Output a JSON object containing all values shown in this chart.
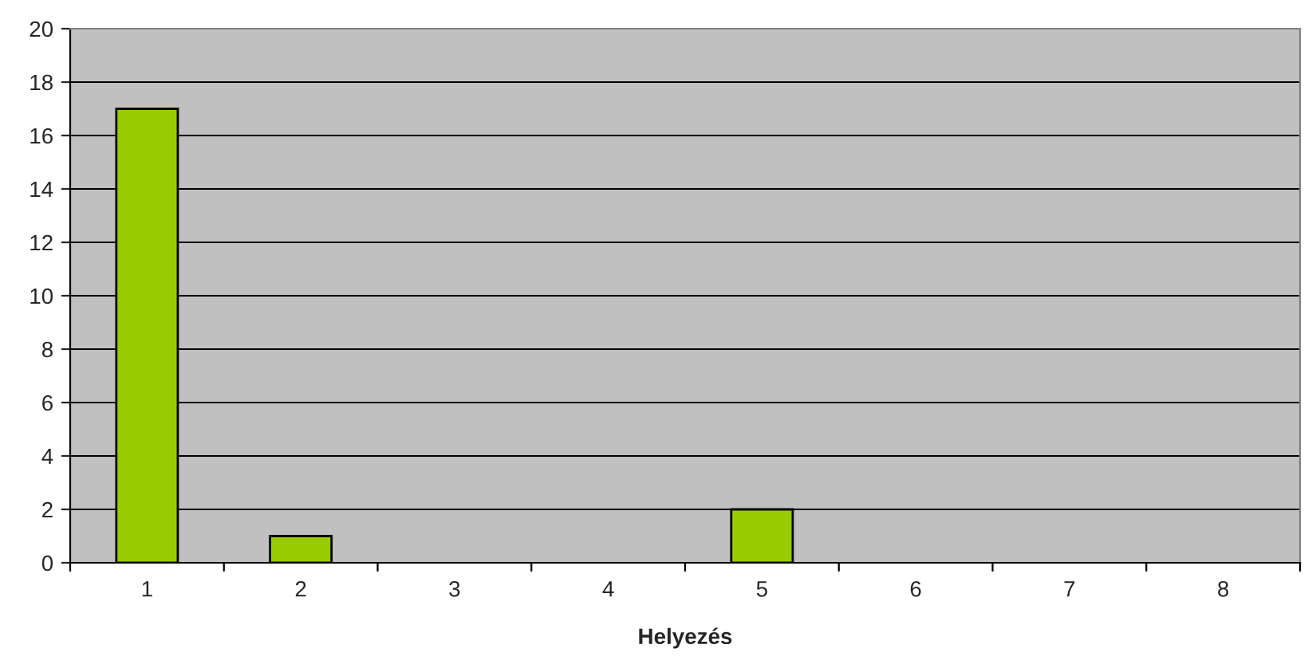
{
  "chart_data": {
    "type": "bar",
    "xlabel": "Helyezés",
    "categories": [
      "1",
      "2",
      "3",
      "4",
      "5",
      "6",
      "7",
      "8"
    ],
    "values": [
      17,
      1,
      0,
      0,
      2,
      0,
      0,
      0
    ],
    "color": "#99cc00",
    "ylim": [
      0,
      20
    ],
    "yticks": [
      0,
      2,
      4,
      6,
      8,
      10,
      12,
      14,
      16,
      18,
      20
    ],
    "grid": "y",
    "legend": false
  }
}
